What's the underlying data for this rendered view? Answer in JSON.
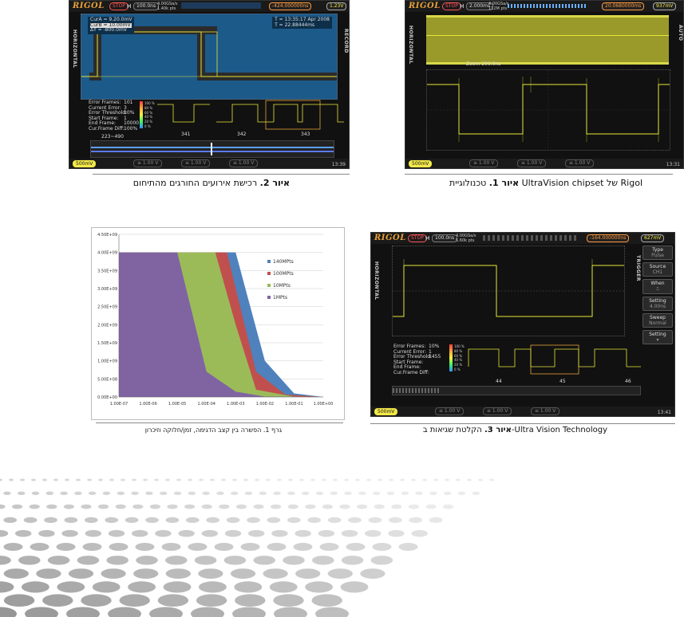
{
  "captions": {
    "fig2": {
      "bold": "איור 2.",
      "text": " רכישת אירועים החורגים מהתיחום"
    },
    "fig1": {
      "bold": "איור 1.",
      "text": " טכנולוגיית UltraVision chipset של Rigol"
    },
    "graph1": {
      "text": "גרף 1. הפשרה בין קצב הדגימה, זמן/חלוקה וזיכרון"
    },
    "fig3": {
      "bold": "איור 3.",
      "text": " הקלטת שגיאות ב-Ultra Vision Technology"
    }
  },
  "scope_common": {
    "logo": "RIGOL",
    "stop": "STOP",
    "h": "H",
    "ch1": "500mV",
    "ch_other": "≡ 1.00 V"
  },
  "scope2": {
    "timebase": "100.0ns",
    "samplerate": "4.00GSa/s",
    "mem": "1.40k pts",
    "delay": "-424.000000ns",
    "trig_level": "1.23V",
    "side_left": "HORIZONTAL",
    "side_right": "RECORD",
    "cursor_a": "CurA = 9.20.0mV",
    "cursor_b": "CurB = 10.00mV",
    "cursor_dy": "ΔY = -800.0mV",
    "time_a": "T = 13:35:17 Apr 2008",
    "time_b": "T = 22.88444ms",
    "err_labels": [
      "Error Frames:",
      "Current Error:",
      "Error Threshold:",
      "Start Frame:",
      "End Frame:",
      "Cur.Frame Diff:"
    ],
    "err_values": [
      "101",
      "3",
      "10%",
      "1",
      "10000",
      "100%"
    ],
    "frames": [
      "341",
      "342",
      "343"
    ],
    "range": "223~490",
    "clock": "13:39"
  },
  "scope1": {
    "timebase": "2.000ms",
    "samplerate": "4.00GSa/s",
    "mem": "112M pts",
    "delay": "20.0680000ms",
    "trig_level": "937mV",
    "side_left": "HORIZONTAL",
    "side_right": "AUTO",
    "zoom": "Zoom 200.0ns",
    "clock": "13:31"
  },
  "scope3": {
    "timebase": "100.0ns",
    "samplerate": "4.00GSa/s",
    "mem": "5.60k pts",
    "delay": "-164.000000ns",
    "trig_level": "627mV",
    "side_left": "HORIZONTAL",
    "side_right": "TRIGGER",
    "err_labels": [
      "Error Frames:",
      "Current Error:",
      "Error Threshold:",
      "Start Frame:",
      "End Frame:",
      "Cur.Frame Diff:"
    ],
    "err_values": [
      "",
      "",
      "10%",
      "1",
      "1455",
      ""
    ],
    "frames": [
      "44",
      "45",
      "46"
    ],
    "menu": [
      {
        "label": "Type",
        "value": "Pulse"
      },
      {
        "label": "Source",
        "value": "CH1"
      },
      {
        "label": "When",
        "value": "⎍"
      },
      {
        "label": "Setting",
        "value": "4.00ns"
      },
      {
        "label": "Sweep",
        "value": "Normal"
      },
      {
        "label": "Setting",
        "value": ""
      }
    ],
    "clock": "13:41"
  },
  "legend_scale": [
    "100 %",
    "80 %",
    "60 %",
    "40 %",
    "20 %",
    "0 %"
  ],
  "chart_data": {
    "type": "area",
    "x_scale": "log",
    "x": [
      1e-07,
      1e-06,
      1e-05,
      0.0001,
      0.001,
      0.01,
      0.1,
      1
    ],
    "xticks": [
      "1.00E-07",
      "1.00E-06",
      "1.00E-05",
      "1.00E-04",
      "1.00E-03",
      "1.00E-02",
      "1.00E-01",
      "1.00E+00"
    ],
    "yticks": [
      "0.00E+00",
      "5.00E+08",
      "1.00E+09",
      "1.50E+09",
      "2.00E+09",
      "2.50E+09",
      "3.00E+09",
      "3.50E+09",
      "4.00E+09",
      "4.50E+09"
    ],
    "ylim": [
      0,
      4500000000.0
    ],
    "legend_position": "right",
    "series": [
      {
        "name": "140MPts",
        "color": "#4f81bd",
        "points": [
          [
            1e-07,
            4000000000.0
          ],
          [
            0.001,
            4000000000.0
          ],
          [
            0.01,
            1000000000.0
          ],
          [
            0.1,
            100000000.0
          ],
          [
            1,
            0
          ]
        ]
      },
      {
        "name": "100MPts",
        "color": "#c0504d",
        "points": [
          [
            1e-07,
            4000000000.0
          ],
          [
            0.0005,
            4000000000.0
          ],
          [
            0.005,
            700000000.0
          ],
          [
            0.05,
            70000000.0
          ],
          [
            1,
            0
          ]
        ]
      },
      {
        "name": "10MPts",
        "color": "#9bbb59",
        "points": [
          [
            1e-07,
            4000000000.0
          ],
          [
            0.0002,
            4000000000.0
          ],
          [
            0.001,
            2000000000.0
          ],
          [
            0.005,
            200000000.0
          ],
          [
            0.1,
            10000000.0
          ],
          [
            1,
            0
          ]
        ]
      },
      {
        "name": "1MPts",
        "color": "#8064a2",
        "points": [
          [
            1e-07,
            4000000000.0
          ],
          [
            1e-05,
            4000000000.0
          ],
          [
            0.0001,
            700000000.0
          ],
          [
            0.001,
            150000000.0
          ],
          [
            0.01,
            10000000.0
          ],
          [
            1,
            0
          ]
        ]
      }
    ]
  }
}
